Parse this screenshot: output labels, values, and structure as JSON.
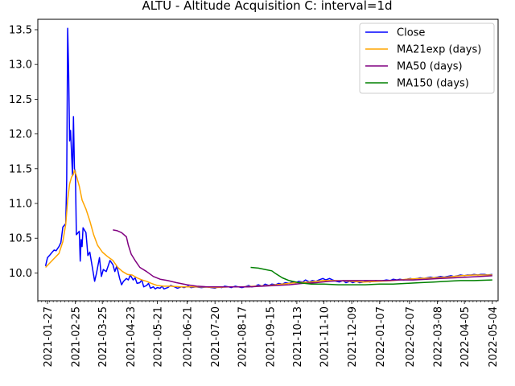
{
  "chart_data": {
    "type": "line",
    "title": "ALTU - Altitude Acquisition C: interval=1d",
    "xlabel": "",
    "ylabel": "",
    "x_axis_type": "date",
    "xlim": [
      "2021-01-17",
      "2022-05-10"
    ],
    "ylim": [
      9.6,
      13.65
    ],
    "x_ticks": [
      "2021-01-27",
      "2021-02-25",
      "2021-03-25",
      "2021-04-23",
      "2021-05-21",
      "2021-06-21",
      "2021-07-20",
      "2021-08-17",
      "2021-09-15",
      "2021-10-13",
      "2021-11-10",
      "2021-12-09",
      "2022-01-07",
      "2022-02-07",
      "2022-03-08",
      "2022-04-05",
      "2022-05-04"
    ],
    "y_ticks": [
      10.0,
      10.5,
      11.0,
      11.5,
      12.0,
      12.5,
      13.0,
      13.5
    ],
    "y_tick_labels": [
      "10.0",
      "10.5",
      "11.0",
      "11.5",
      "12.0",
      "12.5",
      "13.0",
      "13.5"
    ],
    "grid": false,
    "legend_position": "top-right",
    "series": [
      {
        "name": "Close",
        "color": "#0000ff",
        "points": [
          [
            "2021-01-25",
            10.1
          ],
          [
            "2021-01-27",
            10.22
          ],
          [
            "2021-01-29",
            10.25
          ],
          [
            "2021-02-01",
            10.3
          ],
          [
            "2021-02-03",
            10.33
          ],
          [
            "2021-02-05",
            10.32
          ],
          [
            "2021-02-08",
            10.38
          ],
          [
            "2021-02-10",
            10.44
          ],
          [
            "2021-02-12",
            10.66
          ],
          [
            "2021-02-15",
            10.71
          ],
          [
            "2021-02-16",
            11.35
          ],
          [
            "2021-02-17",
            13.52
          ],
          [
            "2021-02-18",
            12.9
          ],
          [
            "2021-02-19",
            11.9
          ],
          [
            "2021-02-20",
            12.05
          ],
          [
            "2021-02-22",
            11.4
          ],
          [
            "2021-02-23",
            12.25
          ],
          [
            "2021-02-24",
            11.5
          ],
          [
            "2021-02-25",
            11.45
          ],
          [
            "2021-02-26",
            10.55
          ],
          [
            "2021-03-01",
            10.6
          ],
          [
            "2021-03-02",
            10.17
          ],
          [
            "2021-03-03",
            10.48
          ],
          [
            "2021-03-04",
            10.38
          ],
          [
            "2021-03-05",
            10.65
          ],
          [
            "2021-03-08",
            10.58
          ],
          [
            "2021-03-09",
            10.42
          ],
          [
            "2021-03-10",
            10.25
          ],
          [
            "2021-03-12",
            10.3
          ],
          [
            "2021-03-15",
            10.05
          ],
          [
            "2021-03-17",
            9.88
          ],
          [
            "2021-03-19",
            10.0
          ],
          [
            "2021-03-22",
            10.22
          ],
          [
            "2021-03-24",
            9.95
          ],
          [
            "2021-03-26",
            10.05
          ],
          [
            "2021-03-29",
            10.02
          ],
          [
            "2021-03-31",
            10.1
          ],
          [
            "2021-04-02",
            10.18
          ],
          [
            "2021-04-05",
            10.12
          ],
          [
            "2021-04-07",
            10.02
          ],
          [
            "2021-04-09",
            10.1
          ],
          [
            "2021-04-12",
            9.92
          ],
          [
            "2021-04-14",
            9.83
          ],
          [
            "2021-04-16",
            9.88
          ],
          [
            "2021-04-19",
            9.92
          ],
          [
            "2021-04-21",
            9.9
          ],
          [
            "2021-04-23",
            9.97
          ],
          [
            "2021-04-26",
            9.9
          ],
          [
            "2021-04-28",
            9.93
          ],
          [
            "2021-04-30",
            9.85
          ],
          [
            "2021-05-03",
            9.86
          ],
          [
            "2021-05-05",
            9.9
          ],
          [
            "2021-05-07",
            9.8
          ],
          [
            "2021-05-10",
            9.82
          ],
          [
            "2021-05-12",
            9.85
          ],
          [
            "2021-05-14",
            9.78
          ],
          [
            "2021-05-17",
            9.8
          ],
          [
            "2021-05-19",
            9.77
          ],
          [
            "2021-05-21",
            9.79
          ],
          [
            "2021-05-24",
            9.78
          ],
          [
            "2021-05-26",
            9.81
          ],
          [
            "2021-05-28",
            9.77
          ],
          [
            "2021-06-01",
            9.79
          ],
          [
            "2021-06-04",
            9.82
          ],
          [
            "2021-06-08",
            9.8
          ],
          [
            "2021-06-11",
            9.78
          ],
          [
            "2021-06-15",
            9.8
          ],
          [
            "2021-06-18",
            9.79
          ],
          [
            "2021-06-22",
            9.81
          ],
          [
            "2021-06-25",
            9.79
          ],
          [
            "2021-06-30",
            9.8
          ],
          [
            "2021-07-06",
            9.79
          ],
          [
            "2021-07-12",
            9.8
          ],
          [
            "2021-07-16",
            9.79
          ],
          [
            "2021-07-20",
            9.78
          ],
          [
            "2021-07-23",
            9.8
          ],
          [
            "2021-07-27",
            9.79
          ],
          [
            "2021-07-30",
            9.81
          ],
          [
            "2021-08-03",
            9.8
          ],
          [
            "2021-08-06",
            9.79
          ],
          [
            "2021-08-10",
            9.81
          ],
          [
            "2021-08-13",
            9.8
          ],
          [
            "2021-08-17",
            9.79
          ],
          [
            "2021-08-20",
            9.8
          ],
          [
            "2021-08-24",
            9.82
          ],
          [
            "2021-08-27",
            9.8
          ],
          [
            "2021-08-31",
            9.81
          ],
          [
            "2021-09-03",
            9.83
          ],
          [
            "2021-09-07",
            9.81
          ],
          [
            "2021-09-10",
            9.84
          ],
          [
            "2021-09-14",
            9.82
          ],
          [
            "2021-09-17",
            9.84
          ],
          [
            "2021-09-21",
            9.83
          ],
          [
            "2021-09-24",
            9.85
          ],
          [
            "2021-09-28",
            9.84
          ],
          [
            "2021-10-01",
            9.86
          ],
          [
            "2021-10-05",
            9.85
          ],
          [
            "2021-10-08",
            9.87
          ],
          [
            "2021-10-12",
            9.86
          ],
          [
            "2021-10-15",
            9.88
          ],
          [
            "2021-10-19",
            9.87
          ],
          [
            "2021-10-22",
            9.9
          ],
          [
            "2021-10-26",
            9.87
          ],
          [
            "2021-10-29",
            9.89
          ],
          [
            "2021-11-02",
            9.88
          ],
          [
            "2021-11-05",
            9.9
          ],
          [
            "2021-11-09",
            9.92
          ],
          [
            "2021-11-12",
            9.9
          ],
          [
            "2021-11-16",
            9.92
          ],
          [
            "2021-11-19",
            9.9
          ],
          [
            "2021-11-23",
            9.88
          ],
          [
            "2021-11-26",
            9.87
          ],
          [
            "2021-11-30",
            9.89
          ],
          [
            "2021-12-03",
            9.86
          ],
          [
            "2021-12-07",
            9.88
          ],
          [
            "2021-12-10",
            9.86
          ],
          [
            "2021-12-14",
            9.88
          ],
          [
            "2021-12-17",
            9.86
          ],
          [
            "2021-12-21",
            9.87
          ],
          [
            "2021-12-24",
            9.88
          ],
          [
            "2021-12-28",
            9.87
          ],
          [
            "2022-01-03",
            9.89
          ],
          [
            "2022-01-07",
            9.88
          ],
          [
            "2022-01-11",
            9.89
          ],
          [
            "2022-01-14",
            9.9
          ],
          [
            "2022-01-18",
            9.89
          ],
          [
            "2022-01-21",
            9.91
          ],
          [
            "2022-01-25",
            9.9
          ],
          [
            "2022-01-28",
            9.91
          ],
          [
            "2022-02-01",
            9.9
          ],
          [
            "2022-02-04",
            9.91
          ],
          [
            "2022-02-08",
            9.92
          ],
          [
            "2022-02-11",
            9.91
          ],
          [
            "2022-02-15",
            9.92
          ],
          [
            "2022-02-18",
            9.93
          ],
          [
            "2022-02-22",
            9.92
          ],
          [
            "2022-02-25",
            9.93
          ],
          [
            "2022-03-01",
            9.94
          ],
          [
            "2022-03-04",
            9.93
          ],
          [
            "2022-03-08",
            9.94
          ],
          [
            "2022-03-11",
            9.95
          ],
          [
            "2022-03-15",
            9.94
          ],
          [
            "2022-03-18",
            9.95
          ],
          [
            "2022-03-22",
            9.96
          ],
          [
            "2022-03-25",
            9.95
          ],
          [
            "2022-03-29",
            9.96
          ],
          [
            "2022-04-01",
            9.97
          ],
          [
            "2022-04-05",
            9.96
          ],
          [
            "2022-04-08",
            9.97
          ],
          [
            "2022-04-12",
            9.97
          ],
          [
            "2022-04-15",
            9.98
          ],
          [
            "2022-04-19",
            9.97
          ],
          [
            "2022-04-22",
            9.98
          ],
          [
            "2022-04-26",
            9.98
          ],
          [
            "2022-04-29",
            9.97
          ],
          [
            "2022-05-04",
            9.98
          ]
        ]
      },
      {
        "name": "MA21exp (days)",
        "color": "#ffa500",
        "points": [
          [
            "2021-01-25",
            10.08
          ],
          [
            "2021-02-01",
            10.18
          ],
          [
            "2021-02-08",
            10.28
          ],
          [
            "2021-02-12",
            10.45
          ],
          [
            "2021-02-15",
            10.7
          ],
          [
            "2021-02-17",
            11.05
          ],
          [
            "2021-02-19",
            11.28
          ],
          [
            "2021-02-21",
            11.38
          ],
          [
            "2021-02-23",
            11.42
          ],
          [
            "2021-02-24",
            11.48
          ],
          [
            "2021-02-26",
            11.4
          ],
          [
            "2021-03-01",
            11.25
          ],
          [
            "2021-03-04",
            11.05
          ],
          [
            "2021-03-08",
            10.92
          ],
          [
            "2021-03-12",
            10.75
          ],
          [
            "2021-03-16",
            10.55
          ],
          [
            "2021-03-20",
            10.4
          ],
          [
            "2021-03-25",
            10.3
          ],
          [
            "2021-03-30",
            10.24
          ],
          [
            "2021-04-05",
            10.18
          ],
          [
            "2021-04-10",
            10.08
          ],
          [
            "2021-04-15",
            10.02
          ],
          [
            "2021-04-20",
            9.98
          ],
          [
            "2021-04-25",
            9.97
          ],
          [
            "2021-04-30",
            9.93
          ],
          [
            "2021-05-05",
            9.9
          ],
          [
            "2021-05-10",
            9.88
          ],
          [
            "2021-05-15",
            9.85
          ],
          [
            "2021-05-21",
            9.82
          ],
          [
            "2021-05-28",
            9.81
          ],
          [
            "2021-06-04",
            9.81
          ],
          [
            "2021-06-15",
            9.8
          ],
          [
            "2021-06-25",
            9.8
          ],
          [
            "2021-07-06",
            9.8
          ],
          [
            "2021-07-20",
            9.79
          ],
          [
            "2021-08-03",
            9.8
          ],
          [
            "2021-08-17",
            9.8
          ],
          [
            "2021-08-31",
            9.81
          ],
          [
            "2021-09-14",
            9.82
          ],
          [
            "2021-09-28",
            9.84
          ],
          [
            "2021-10-12",
            9.86
          ],
          [
            "2021-10-26",
            9.87
          ],
          [
            "2021-11-09",
            9.89
          ],
          [
            "2021-11-23",
            9.89
          ],
          [
            "2021-12-07",
            9.88
          ],
          [
            "2021-12-21",
            9.87
          ],
          [
            "2022-01-07",
            9.88
          ],
          [
            "2022-01-21",
            9.89
          ],
          [
            "2022-02-04",
            9.91
          ],
          [
            "2022-02-18",
            9.92
          ],
          [
            "2022-03-04",
            9.93
          ],
          [
            "2022-03-18",
            9.94
          ],
          [
            "2022-04-01",
            9.96
          ],
          [
            "2022-04-15",
            9.97
          ],
          [
            "2022-05-04",
            9.97
          ]
        ]
      },
      {
        "name": "MA50 (days)",
        "color": "#800080",
        "points": [
          [
            "2021-04-05",
            10.62
          ],
          [
            "2021-04-09",
            10.61
          ],
          [
            "2021-04-14",
            10.58
          ],
          [
            "2021-04-19",
            10.52
          ],
          [
            "2021-04-21",
            10.4
          ],
          [
            "2021-04-24",
            10.27
          ],
          [
            "2021-04-28",
            10.18
          ],
          [
            "2021-05-03",
            10.08
          ],
          [
            "2021-05-10",
            10.02
          ],
          [
            "2021-05-17",
            9.95
          ],
          [
            "2021-05-24",
            9.91
          ],
          [
            "2021-06-01",
            9.89
          ],
          [
            "2021-06-10",
            9.86
          ],
          [
            "2021-06-21",
            9.83
          ],
          [
            "2021-07-01",
            9.81
          ],
          [
            "2021-07-12",
            9.8
          ],
          [
            "2021-07-26",
            9.8
          ],
          [
            "2021-08-10",
            9.8
          ],
          [
            "2021-08-24",
            9.8
          ],
          [
            "2021-09-07",
            9.81
          ],
          [
            "2021-09-21",
            9.82
          ],
          [
            "2021-10-05",
            9.83
          ],
          [
            "2021-10-19",
            9.85
          ],
          [
            "2021-11-02",
            9.86
          ],
          [
            "2021-11-16",
            9.88
          ],
          [
            "2021-12-01",
            9.89
          ],
          [
            "2021-12-15",
            9.89
          ],
          [
            "2021-12-29",
            9.89
          ],
          [
            "2022-01-14",
            9.89
          ],
          [
            "2022-01-28",
            9.9
          ],
          [
            "2022-02-11",
            9.9
          ],
          [
            "2022-02-25",
            9.91
          ],
          [
            "2022-03-11",
            9.92
          ],
          [
            "2022-03-25",
            9.93
          ],
          [
            "2022-04-08",
            9.94
          ],
          [
            "2022-04-22",
            9.95
          ],
          [
            "2022-05-04",
            9.96
          ]
        ]
      },
      {
        "name": "MA150 (days)",
        "color": "#008000",
        "points": [
          [
            "2021-08-26",
            10.08
          ],
          [
            "2021-09-03",
            10.07
          ],
          [
            "2021-09-10",
            10.05
          ],
          [
            "2021-09-17",
            10.03
          ],
          [
            "2021-09-21",
            9.99
          ],
          [
            "2021-09-28",
            9.93
          ],
          [
            "2021-10-05",
            9.89
          ],
          [
            "2021-10-15",
            9.86
          ],
          [
            "2021-10-28",
            9.84
          ],
          [
            "2021-11-10",
            9.84
          ],
          [
            "2021-11-25",
            9.83
          ],
          [
            "2021-12-09",
            9.83
          ],
          [
            "2021-12-23",
            9.83
          ],
          [
            "2022-01-07",
            9.84
          ],
          [
            "2022-01-21",
            9.84
          ],
          [
            "2022-02-04",
            9.85
          ],
          [
            "2022-02-18",
            9.86
          ],
          [
            "2022-03-04",
            9.87
          ],
          [
            "2022-03-18",
            9.88
          ],
          [
            "2022-04-01",
            9.89
          ],
          [
            "2022-04-15",
            9.89
          ],
          [
            "2022-05-04",
            9.9
          ]
        ]
      }
    ]
  }
}
